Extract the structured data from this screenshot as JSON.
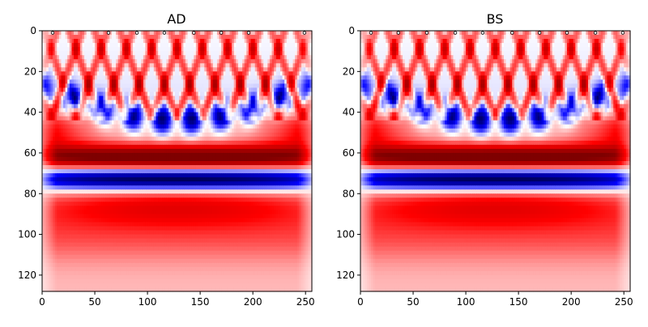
{
  "figure": {
    "panel_titles": [
      "AD",
      "BS"
    ]
  },
  "colors": {
    "deep_red": "#7f0000",
    "red": "#ff0000",
    "white": "#ffffff",
    "blue": "#0000ff",
    "deep_blue": "#00004c",
    "marker_fill": "#ffffff",
    "marker_edge": "#000000",
    "axis": "#000000"
  },
  "chart_data": [
    {
      "type": "heatmap",
      "title": "AD",
      "colormap": "seismic",
      "x_range": [
        0,
        256
      ],
      "y_range": [
        0,
        128
      ],
      "y_inverted": true,
      "x_ticks": [
        0,
        50,
        100,
        150,
        200,
        250
      ],
      "y_ticks": [
        0,
        20,
        40,
        60,
        80,
        100,
        120
      ],
      "x_tick_labels": [
        "0",
        "50",
        "100",
        "150",
        "200",
        "250"
      ],
      "y_tick_labels": [
        "0",
        "20",
        "40",
        "60",
        "80",
        "100",
        "120"
      ],
      "markers": [
        {
          "x": 10,
          "y": 1
        },
        {
          "x": 63,
          "y": 1
        },
        {
          "x": 90,
          "y": 1
        },
        {
          "x": 116,
          "y": 1
        },
        {
          "x": 144,
          "y": 1
        },
        {
          "x": 170,
          "y": 1
        },
        {
          "x": 196,
          "y": 1
        },
        {
          "x": 249,
          "y": 1
        }
      ],
      "grid": false,
      "legend": "none"
    },
    {
      "type": "heatmap",
      "title": "BS",
      "colormap": "seismic",
      "x_range": [
        0,
        256
      ],
      "y_range": [
        0,
        128
      ],
      "y_inverted": true,
      "x_ticks": [
        0,
        50,
        100,
        150,
        200,
        250
      ],
      "y_ticks": [
        0,
        20,
        40,
        60,
        80,
        100,
        120
      ],
      "x_tick_labels": [
        "0",
        "50",
        "100",
        "150",
        "200",
        "250"
      ],
      "y_tick_labels": [
        "0",
        "20",
        "40",
        "60",
        "80",
        "100",
        "120"
      ],
      "markers": [
        {
          "x": 10,
          "y": 1
        },
        {
          "x": 36,
          "y": 1
        },
        {
          "x": 63,
          "y": 1
        },
        {
          "x": 90,
          "y": 1
        },
        {
          "x": 116,
          "y": 1
        },
        {
          "x": 144,
          "y": 1
        },
        {
          "x": 170,
          "y": 1
        },
        {
          "x": 196,
          "y": 1
        },
        {
          "x": 223,
          "y": 1
        },
        {
          "x": 249,
          "y": 1
        }
      ],
      "grid": false,
      "legend": "none"
    }
  ]
}
